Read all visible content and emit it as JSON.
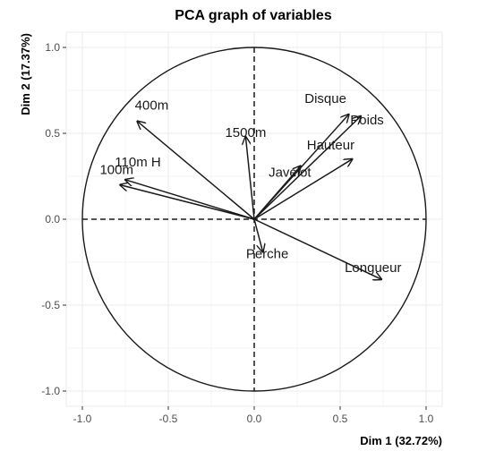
{
  "chart_data": {
    "type": "scatter",
    "title": "PCA graph of variables",
    "xlabel": "Dim 1 (32.72%)",
    "ylabel": "Dim 2 (17.37%)",
    "xlim": [
      -1.05,
      1.05
    ],
    "ylim": [
      -1.08,
      1.05
    ],
    "xticks": [
      -1.0,
      -0.5,
      0.0,
      0.5,
      1.0
    ],
    "xtick_labels": [
      "-1.0",
      "-0.5",
      "0.0",
      "0.5",
      "1.0"
    ],
    "yticks": [
      -1.0,
      -0.5,
      0.0,
      0.5,
      1.0
    ],
    "ytick_labels": [
      "-1.0",
      "-0.5",
      "0.0",
      "0.5",
      "1.0"
    ],
    "grid": true,
    "unit_circle": true,
    "variables": [
      {
        "name": "100m",
        "x": -0.78,
        "y": 0.2
      },
      {
        "name": "110m H",
        "x": -0.75,
        "y": 0.23
      },
      {
        "name": "400m",
        "x": -0.68,
        "y": 0.57
      },
      {
        "name": "1500m",
        "x": -0.05,
        "y": 0.48
      },
      {
        "name": "Disque",
        "x": 0.55,
        "y": 0.61
      },
      {
        "name": "Poids",
        "x": 0.62,
        "y": 0.6
      },
      {
        "name": "Hauteur",
        "x": 0.57,
        "y": 0.35
      },
      {
        "name": "Javelot",
        "x": 0.27,
        "y": 0.31
      },
      {
        "name": "Perche",
        "x": 0.05,
        "y": -0.19
      },
      {
        "name": "Longueur",
        "x": 0.74,
        "y": -0.35
      }
    ]
  }
}
